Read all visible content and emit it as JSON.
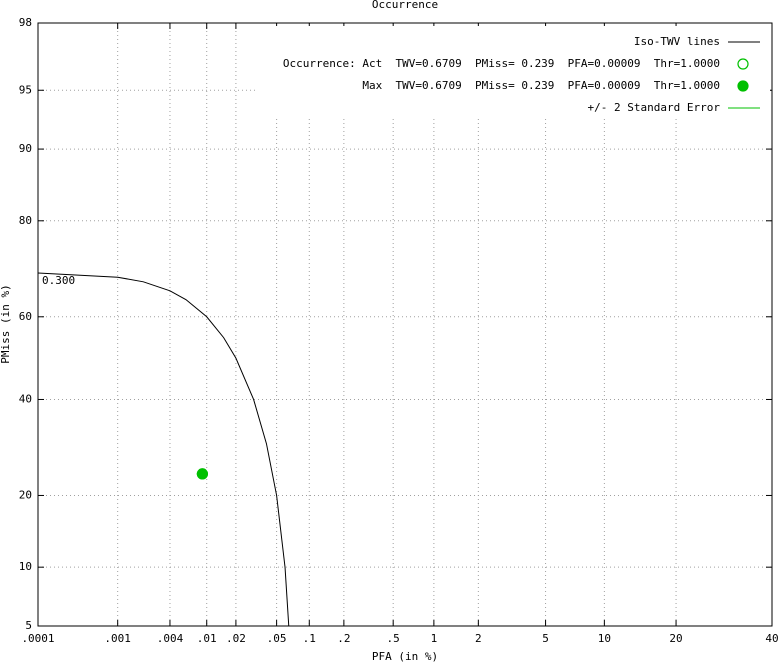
{
  "chart_data": {
    "type": "line",
    "title": "Occurrence",
    "x_label": "PFA (in %)",
    "y_label": "PMiss (in %)",
    "scale": "probit",
    "xlim": [
      0.0001,
      40
    ],
    "ylim": [
      5,
      98
    ],
    "xticks": [
      {
        "value": 0.0001,
        "label": ".0001"
      },
      {
        "value": 0.001,
        "label": ".001"
      },
      {
        "value": 0.004,
        "label": ".004"
      },
      {
        "value": 0.01,
        "label": ".01"
      },
      {
        "value": 0.02,
        "label": ".02"
      },
      {
        "value": 0.05,
        "label": ".05"
      },
      {
        "value": 0.1,
        "label": ".1"
      },
      {
        "value": 0.2,
        "label": ".2"
      },
      {
        "value": 0.5,
        "label": ".5"
      },
      1,
      2,
      5,
      10,
      20,
      40
    ],
    "yticks": [
      5,
      10,
      20,
      40,
      60,
      80,
      90,
      95,
      98
    ],
    "grid": true,
    "legend": "upper right",
    "series": [
      {
        "name": "Iso-TWV lines",
        "color": "#000000",
        "label": "0.300",
        "x": [
          0.0001,
          0.001,
          0.002,
          0.004,
          0.006,
          0.01,
          0.015,
          0.02,
          0.03,
          0.04,
          0.05,
          0.06,
          0.065
        ],
        "values": [
          69.9,
          69.0,
          68.0,
          66.0,
          64.0,
          60.0,
          55.0,
          50.0,
          40.0,
          30.0,
          20.0,
          10.0,
          5.0
        ]
      },
      {
        "name": "Occurrence: Act  TWV=0.6709  PMiss= 0.239  PFA=0.00009  Thr=1.0000",
        "color": "#00c000",
        "marker": "open-circle",
        "x": [
          0.009
        ],
        "values": [
          23.9
        ]
      },
      {
        "name": "Max  TWV=0.6709  PMiss= 0.239  PFA=0.00009  Thr=1.0000",
        "color": "#00c000",
        "marker": "filled-circle",
        "x": [
          0.009
        ],
        "values": [
          23.9
        ]
      },
      {
        "name": "+/- 2 Standard Error",
        "color": "#00c000",
        "x": [],
        "values": []
      }
    ]
  }
}
